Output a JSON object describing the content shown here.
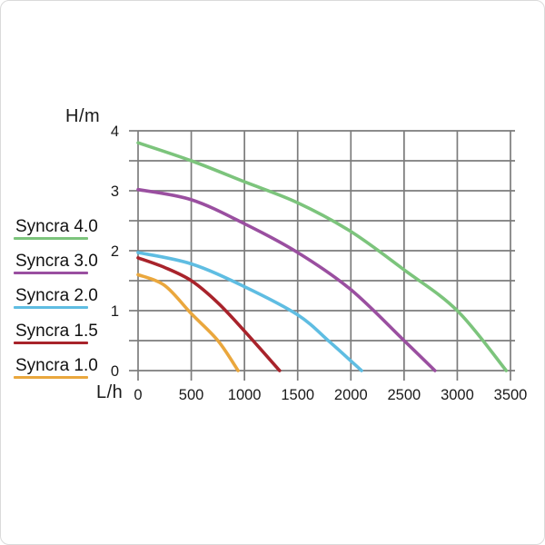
{
  "page": {
    "background": "#ffffff",
    "border_color": "#dadada"
  },
  "chart_data": {
    "type": "line",
    "title": "",
    "xlabel": "L/h",
    "ylabel": "H/m",
    "xlim": [
      0,
      3500
    ],
    "ylim": [
      0,
      4
    ],
    "x_ticks": [
      0,
      500,
      1000,
      1500,
      2000,
      2500,
      3000,
      3500
    ],
    "y_tick_labels": [
      0,
      1,
      2,
      3,
      4
    ],
    "x_grid_step": 500,
    "y_grid_step": 0.5,
    "grid": true,
    "grid_color": "#7c7c7c",
    "axis_text_color": "#1a1a1a",
    "legend_position": "left",
    "series": [
      {
        "name": "Syncra 4.0",
        "color": "#7cc47c",
        "points": [
          [
            0,
            3.8
          ],
          [
            500,
            3.5
          ],
          [
            1000,
            3.15
          ],
          [
            1500,
            2.8
          ],
          [
            2000,
            2.32
          ],
          [
            2500,
            1.68
          ],
          [
            3000,
            1.0
          ],
          [
            3460,
            0
          ]
        ]
      },
      {
        "name": "Syncra 3.0",
        "color": "#9a4fa0",
        "points": [
          [
            0,
            3.02
          ],
          [
            500,
            2.85
          ],
          [
            1000,
            2.45
          ],
          [
            1500,
            1.97
          ],
          [
            2000,
            1.35
          ],
          [
            2500,
            0.5
          ],
          [
            2790,
            0
          ]
        ]
      },
      {
        "name": "Syncra 2.0",
        "color": "#5fbde2",
        "points": [
          [
            0,
            1.97
          ],
          [
            500,
            1.78
          ],
          [
            1000,
            1.4
          ],
          [
            1500,
            0.93
          ],
          [
            1800,
            0.48
          ],
          [
            2100,
            0
          ]
        ]
      },
      {
        "name": "Syncra 1.5",
        "color": "#a8232b",
        "points": [
          [
            0,
            1.88
          ],
          [
            250,
            1.72
          ],
          [
            500,
            1.5
          ],
          [
            750,
            1.13
          ],
          [
            1000,
            0.66
          ],
          [
            1330,
            0
          ]
        ]
      },
      {
        "name": "Syncra 1.0",
        "color": "#eaa73d",
        "points": [
          [
            0,
            1.6
          ],
          [
            250,
            1.42
          ],
          [
            500,
            0.95
          ],
          [
            750,
            0.5
          ],
          [
            940,
            0
          ]
        ]
      }
    ]
  }
}
